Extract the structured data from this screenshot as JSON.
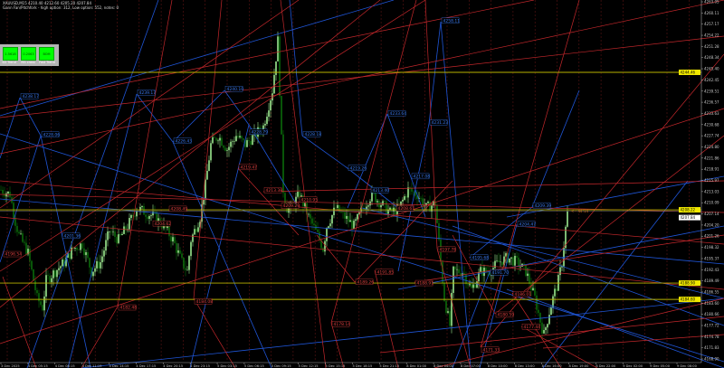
{
  "header": {
    "line1": "XAUUSD,M15  4210.40 4212.60 4205.20 4207.84",
    "line2": "Gann Fan/Pitchfork - high option: 312, Low option: 552, notes: 0"
  },
  "panel": {
    "buttons": [
      {
        "value": "1.5618",
        "caption": "SD Trend"
      },
      {
        "value": "0.2063",
        "caption": "MA cross"
      },
      {
        "value": "BOM",
        "caption": "Fast Trend"
      }
    ]
  },
  "colors": {
    "background": "#000000",
    "bull_candle": "#9be88f",
    "bear_candle": "#0b6a0b",
    "blue_lines": "#1f55d6",
    "red_lines": "#c3272b",
    "level_lines": "#b9b200",
    "separator": "#5c1313",
    "axis_text": "#c8c8c8"
  },
  "chart_data": {
    "type": "candlestick",
    "symbol": "XAUUSD",
    "timeframe": "M15",
    "ylim": [
      4168.9,
      4263.05
    ],
    "price_axis_ticks": [
      "4263.05",
      "4260.11",
      "4257.17",
      "4254.22",
      "4251.28",
      "4248.34",
      "4245.40",
      "4242.45",
      "4239.51",
      "4236.57",
      "4233.63",
      "4230.68",
      "4227.74",
      "4224.80",
      "4221.86",
      "4218.91",
      "4215.97",
      "4213.03",
      "4210.09",
      "4207.14",
      "4204.20",
      "4201.26",
      "4198.32",
      "4195.37",
      "4192.43",
      "4189.49",
      "4186.55",
      "4183.60",
      "4180.66",
      "4177.72",
      "4174.78",
      "4171.83",
      "4168.90"
    ],
    "highlighted_levels": [
      {
        "label": "4244.46",
        "kind": "level"
      },
      {
        "label": "4208.22",
        "kind": "level"
      },
      {
        "label": "4207.84",
        "kind": "current"
      },
      {
        "label": "4188.90",
        "kind": "level"
      },
      {
        "label": "4184.60",
        "kind": "level"
      }
    ],
    "time_axis_labels": [
      "3 Dec 2025",
      "4 Dec 05:15",
      "4 Dec 08:15",
      "4 Dec 11:15",
      "4 Dec 14:15",
      "4 Dec 17:15",
      "4 Dec 20:15",
      "4 Dec 23:15",
      "5 Dec 03:15",
      "5 Dec 06:15",
      "5 Dec 09:15",
      "5 Dec 12:15",
      "5 Dec 15:15",
      "5 Dec 18:15",
      "5 Dec 21:15",
      "8 Dec 01:00",
      "8 Dec 04:00",
      "8 Dec 07:00",
      "8 Dec 10:00",
      "8 Dec 13:00",
      "8 Dec 16:00",
      "8 Dec 19:00",
      "8 Dec 22:00",
      "9 Dec 02:00",
      "9 Dec 05:00",
      "9 Dec 08:00"
    ],
    "price_path": [
      {
        "bar": 0,
        "price": 4213.5
      },
      {
        "bar": 5,
        "price": 4212.3
      },
      {
        "bar": 8,
        "price": 4205.1
      },
      {
        "bar": 10,
        "price": 4201.5
      },
      {
        "bar": 15,
        "price": 4196.8
      },
      {
        "bar": 20,
        "price": 4184.9
      },
      {
        "bar": 23,
        "price": 4182.5
      },
      {
        "bar": 25,
        "price": 4189.6
      },
      {
        "bar": 30,
        "price": 4192.0
      },
      {
        "bar": 35,
        "price": 4194.4
      },
      {
        "bar": 40,
        "price": 4198.0
      },
      {
        "bar": 45,
        "price": 4199.2
      },
      {
        "bar": 50,
        "price": 4192.0
      },
      {
        "bar": 55,
        "price": 4194.4
      },
      {
        "bar": 60,
        "price": 4202.7
      },
      {
        "bar": 65,
        "price": 4200.3
      },
      {
        "bar": 70,
        "price": 4203.9
      },
      {
        "bar": 75,
        "price": 4208.7
      },
      {
        "bar": 80,
        "price": 4207.5
      },
      {
        "bar": 85,
        "price": 4206.3
      },
      {
        "bar": 90,
        "price": 4203.9
      },
      {
        "bar": 95,
        "price": 4200.3
      },
      {
        "bar": 100,
        "price": 4194.4
      },
      {
        "bar": 103,
        "price": 4192.0
      },
      {
        "bar": 105,
        "price": 4200.3
      },
      {
        "bar": 110,
        "price": 4206.3
      },
      {
        "bar": 113,
        "price": 4214.7
      },
      {
        "bar": 116,
        "price": 4225.4
      },
      {
        "bar": 120,
        "price": 4227.8
      },
      {
        "bar": 125,
        "price": 4224.2
      },
      {
        "bar": 130,
        "price": 4227.8
      },
      {
        "bar": 135,
        "price": 4225.4
      },
      {
        "bar": 140,
        "price": 4227.8
      },
      {
        "bar": 145,
        "price": 4230.2
      },
      {
        "bar": 150,
        "price": 4239.7
      },
      {
        "bar": 153,
        "price": 4252.8
      },
      {
        "bar": 156,
        "price": 4213.5
      },
      {
        "bar": 158,
        "price": 4208.7
      },
      {
        "bar": 160,
        "price": 4208.7
      },
      {
        "bar": 165,
        "price": 4212.3
      },
      {
        "bar": 170,
        "price": 4206.3
      },
      {
        "bar": 175,
        "price": 4201.5
      },
      {
        "bar": 178,
        "price": 4198.0
      },
      {
        "bar": 180,
        "price": 4203.9
      },
      {
        "bar": 185,
        "price": 4208.7
      },
      {
        "bar": 190,
        "price": 4206.3
      },
      {
        "bar": 195,
        "price": 4203.9
      },
      {
        "bar": 200,
        "price": 4208.7
      },
      {
        "bar": 205,
        "price": 4212.3
      },
      {
        "bar": 210,
        "price": 4209.9
      },
      {
        "bar": 215,
        "price": 4207.5
      },
      {
        "bar": 220,
        "price": 4208.7
      },
      {
        "bar": 225,
        "price": 4213.5
      },
      {
        "bar": 230,
        "price": 4212.3
      },
      {
        "bar": 235,
        "price": 4208.7
      },
      {
        "bar": 240,
        "price": 4209.9
      },
      {
        "bar": 243,
        "price": 4194.4
      },
      {
        "bar": 245,
        "price": 4184.9
      },
      {
        "bar": 248,
        "price": 4177.7
      },
      {
        "bar": 250,
        "price": 4192.0
      },
      {
        "bar": 255,
        "price": 4192.0
      },
      {
        "bar": 260,
        "price": 4187.2
      },
      {
        "bar": 265,
        "price": 4192.0
      },
      {
        "bar": 270,
        "price": 4192.0
      },
      {
        "bar": 275,
        "price": 4194.4
      },
      {
        "bar": 280,
        "price": 4195.6
      },
      {
        "bar": 285,
        "price": 4194.4
      },
      {
        "bar": 290,
        "price": 4192.0
      },
      {
        "bar": 295,
        "price": 4184.9
      },
      {
        "bar": 298,
        "price": 4178.9
      },
      {
        "bar": 300,
        "price": 4175.3
      },
      {
        "bar": 303,
        "price": 4181.3
      },
      {
        "bar": 305,
        "price": 4184.9
      },
      {
        "bar": 308,
        "price": 4189.6
      },
      {
        "bar": 310,
        "price": 4194.4
      },
      {
        "bar": 313,
        "price": 4207.84
      }
    ],
    "annotations": {
      "red": [
        "4219.47",
        "4213.38",
        "4210.95",
        "4209.29",
        "4208.49",
        "4204.62",
        "4208.61",
        "4196.54",
        "4182.48",
        "4184.08",
        "4197.78",
        "4191.85",
        "4189.26",
        "4188.91",
        "4186.01",
        "4180.59",
        "4177.44",
        "4178.14",
        "4171.33"
      ],
      "blue": [
        "4238.17",
        "4228.06",
        "4239.17",
        "4240.10",
        "4228.79",
        "4226.43",
        "4201.36",
        "4228.18",
        "4219.26",
        "4217.08",
        "4213.40",
        "4258.11",
        "4233.64",
        "4231.23",
        "4209.39",
        "4204.47",
        "4195.68",
        "4191.70"
      ]
    },
    "countdown": "<-- 44:14",
    "grid": false
  }
}
